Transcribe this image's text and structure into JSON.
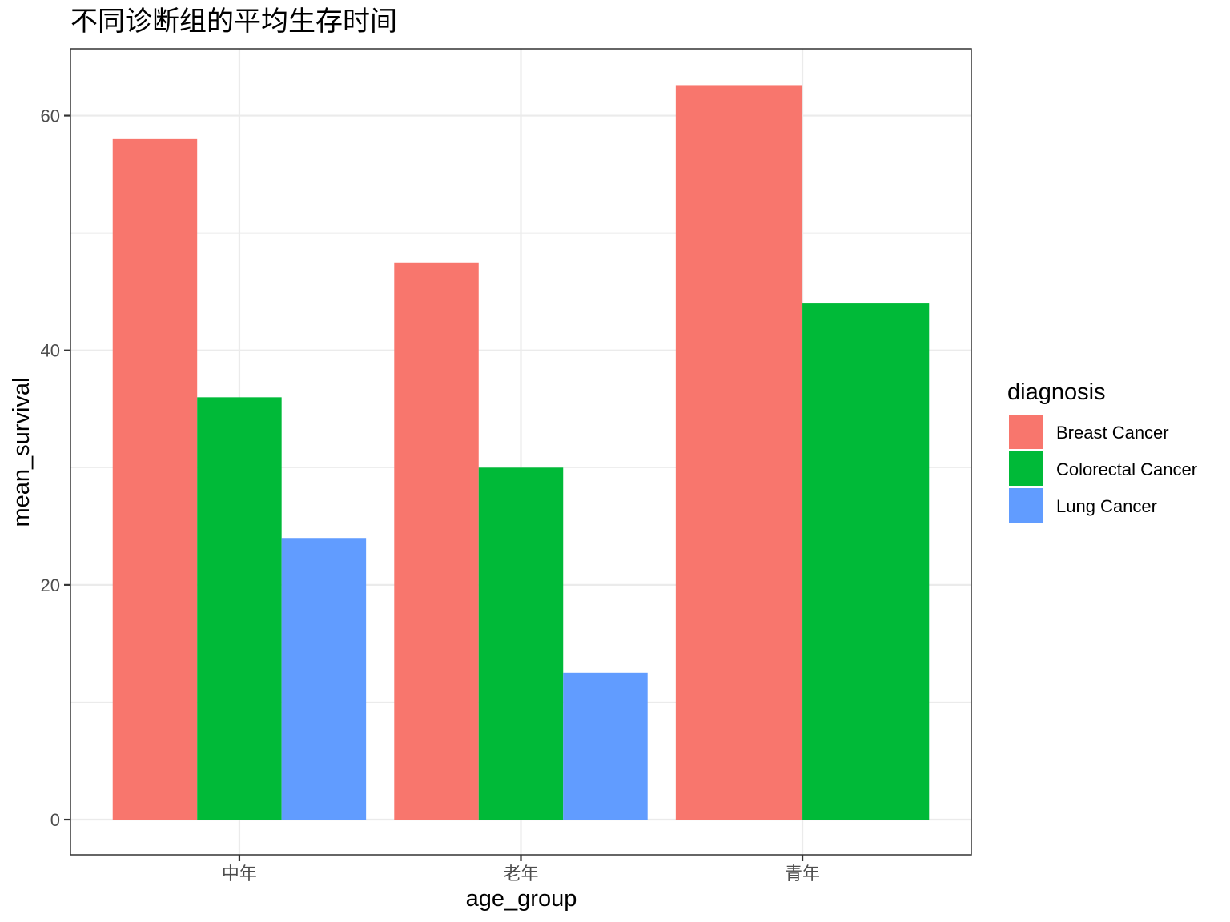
{
  "chart_data": {
    "type": "bar",
    "title": "不同诊断组的平均生存时间",
    "xlabel": "age_group",
    "ylabel": "mean_survival",
    "categories": [
      "中年",
      "老年",
      "青年"
    ],
    "series": [
      {
        "name": "Breast Cancer",
        "color": "#F8766D",
        "values": [
          58,
          47.5,
          62.6
        ]
      },
      {
        "name": "Colorectal Cancer",
        "color": "#00BA38",
        "values": [
          36,
          30,
          44
        ]
      },
      {
        "name": "Lung Cancer",
        "color": "#619CFF",
        "values": [
          24,
          12.5,
          null
        ]
      }
    ],
    "ylim": [
      -3,
      65.7
    ],
    "y_ticks": [
      0,
      20,
      40,
      60
    ],
    "grid": true,
    "legend": {
      "title": "diagnosis",
      "position": "right"
    },
    "bar_style": "dodge"
  }
}
